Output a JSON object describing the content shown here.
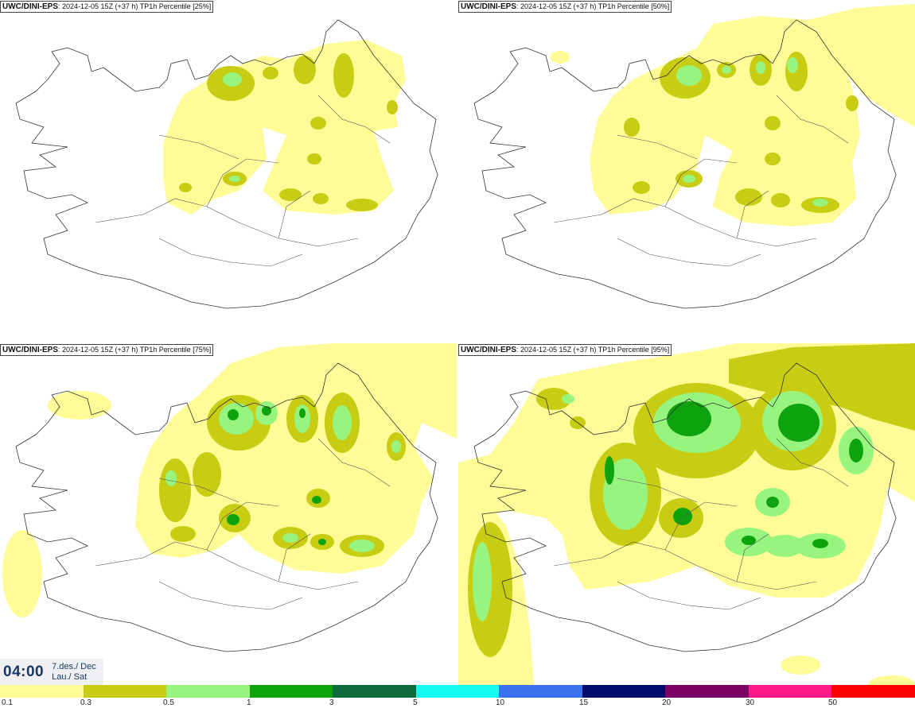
{
  "panels": [
    {
      "source": "UWC/DINI-EPS",
      "run": "2024-12-05 15Z (+37 h)",
      "field": "TP1h Percentile",
      "percentile": "[25%]"
    },
    {
      "source": "UWC/DINI-EPS",
      "run": "2024-12-05 15Z (+37 h)",
      "field": "TP1h Percentile",
      "percentile": "[50%]"
    },
    {
      "source": "UWC/DINI-EPS",
      "run": "2024-12-05 15Z (+37 h)",
      "field": "TP1h Percentile",
      "percentile": "[75%]"
    },
    {
      "source": "UWC/DINI-EPS",
      "run": "2024-12-05 15Z (+37 h)",
      "field": "TP1h Percentile",
      "percentile": "[95%]"
    }
  ],
  "time": {
    "hour": "04:00",
    "date_line1": "7.des./ Dec",
    "date_line2": "Lau./ Sat"
  },
  "legend": {
    "labels": [
      "0.1",
      "0.3",
      "0.5",
      "1",
      "3",
      "5",
      "10",
      "15",
      "20",
      "30",
      "50"
    ],
    "colors": [
      "#fffb96",
      "#c8cc12",
      "#97f57f",
      "#0fa20f",
      "#0f6a3c",
      "#13fbf0",
      "#3b72ef",
      "#000a6b",
      "#7d0067",
      "#fb1a88",
      "#fb0000"
    ]
  },
  "colors": {
    "light": "#fffb96",
    "olive": "#c8cc12",
    "lightgreen": "#97f57f",
    "green": "#0fa20f"
  }
}
